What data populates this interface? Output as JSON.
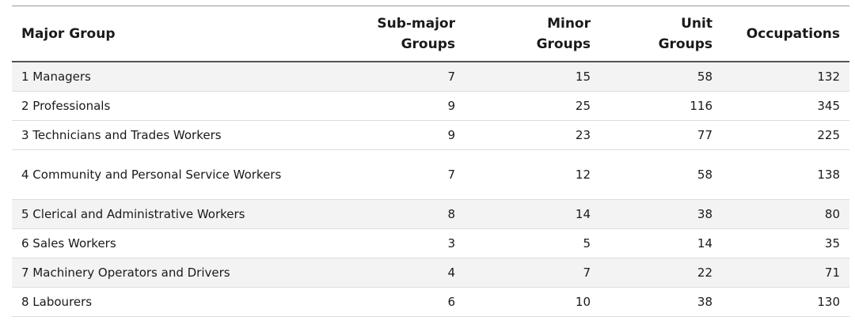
{
  "table": {
    "headers": [
      {
        "line1": "Major Group",
        "line2": ""
      },
      {
        "line1": "Sub-major",
        "line2": "Groups"
      },
      {
        "line1": "Minor",
        "line2": "Groups"
      },
      {
        "line1": "Unit",
        "line2": "Groups"
      },
      {
        "line1": "Occupations",
        "line2": ""
      }
    ],
    "rows": [
      {
        "group": "1 Managers",
        "sub_major": "7",
        "minor": "15",
        "unit": "58",
        "occupations": "132"
      },
      {
        "group": "2 Professionals",
        "sub_major": "9",
        "minor": "25",
        "unit": "116",
        "occupations": "345"
      },
      {
        "group": "3 Technicians and Trades Workers",
        "sub_major": "9",
        "minor": "23",
        "unit": "77",
        "occupations": "225"
      },
      {
        "group": "4 Community and Personal Service Workers",
        "sub_major": "7",
        "minor": "12",
        "unit": "58",
        "occupations": "138"
      },
      {
        "group": "5 Clerical and Administrative Workers",
        "sub_major": "8",
        "minor": "14",
        "unit": "38",
        "occupations": "80"
      },
      {
        "group": "6 Sales Workers",
        "sub_major": "3",
        "minor": "5",
        "unit": "14",
        "occupations": "35"
      },
      {
        "group": "7 Machinery Operators and Drivers",
        "sub_major": "4",
        "minor": "7",
        "unit": "22",
        "occupations": "71"
      },
      {
        "group": "8 Labourers",
        "sub_major": "6",
        "minor": "10",
        "unit": "38",
        "occupations": "130"
      }
    ]
  }
}
